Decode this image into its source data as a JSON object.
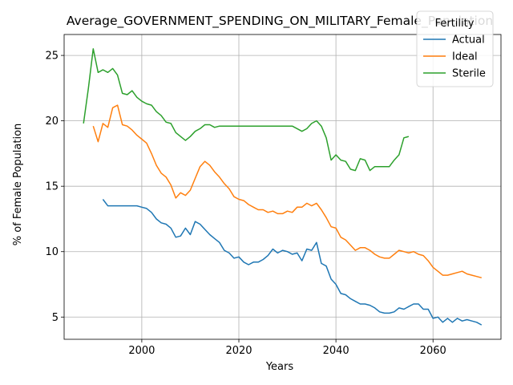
{
  "chart_data": {
    "type": "line",
    "title": "Average_GOVERNMENT_SPENDING_ON_MILITARY_Female_Population",
    "xlabel": "Years",
    "ylabel": "% of Female Population",
    "xlim": [
      2084,
      2074
    ],
    "ylim": [
      3.3,
      26.6
    ],
    "xticks": [
      2000,
      2020,
      2040,
      2060
    ],
    "yticks": [
      5,
      10,
      15,
      20,
      25
    ],
    "grid": true,
    "legend": {
      "title": "Fertility",
      "placement": "top-right"
    },
    "series": [
      {
        "name": "Actual",
        "color": "#1f77b4",
        "points": [
          [
            1992,
            14.0
          ],
          [
            1993,
            13.5
          ],
          [
            1995,
            13.5
          ],
          [
            1997,
            13.5
          ],
          [
            1999,
            13.5
          ],
          [
            2000,
            13.4
          ],
          [
            2001,
            13.3
          ],
          [
            2002,
            13.0
          ],
          [
            2003,
            12.5
          ],
          [
            2004,
            12.2
          ],
          [
            2005,
            12.1
          ],
          [
            2006,
            11.8
          ],
          [
            2007,
            11.1
          ],
          [
            2008,
            11.2
          ],
          [
            2009,
            11.8
          ],
          [
            2010,
            11.3
          ],
          [
            2011,
            12.3
          ],
          [
            2012,
            12.1
          ],
          [
            2013,
            11.7
          ],
          [
            2014,
            11.3
          ],
          [
            2015,
            11.0
          ],
          [
            2016,
            10.7
          ],
          [
            2017,
            10.1
          ],
          [
            2018,
            9.9
          ],
          [
            2019,
            9.5
          ],
          [
            2020,
            9.6
          ],
          [
            2021,
            9.2
          ],
          [
            2022,
            9.0
          ],
          [
            2023,
            9.2
          ],
          [
            2024,
            9.2
          ],
          [
            2025,
            9.4
          ],
          [
            2026,
            9.7
          ],
          [
            2027,
            10.2
          ],
          [
            2028,
            9.9
          ],
          [
            2029,
            10.1
          ],
          [
            2030,
            10.0
          ],
          [
            2031,
            9.8
          ],
          [
            2032,
            9.9
          ],
          [
            2033,
            9.3
          ],
          [
            2034,
            10.2
          ],
          [
            2035,
            10.1
          ],
          [
            2036,
            10.7
          ],
          [
            2037,
            9.1
          ],
          [
            2038,
            8.9
          ],
          [
            2039,
            7.9
          ],
          [
            2040,
            7.5
          ],
          [
            2041,
            6.8
          ],
          [
            2042,
            6.7
          ],
          [
            2043,
            6.4
          ],
          [
            2044,
            6.2
          ],
          [
            2045,
            6.0
          ],
          [
            2046,
            6.0
          ],
          [
            2047,
            5.9
          ],
          [
            2048,
            5.7
          ],
          [
            2049,
            5.4
          ],
          [
            2050,
            5.3
          ],
          [
            2051,
            5.3
          ],
          [
            2052,
            5.4
          ],
          [
            2053,
            5.7
          ],
          [
            2054,
            5.6
          ],
          [
            2055,
            5.8
          ],
          [
            2056,
            6.0
          ],
          [
            2057,
            6.0
          ],
          [
            2058,
            5.6
          ],
          [
            2059,
            5.6
          ],
          [
            2060,
            4.9
          ],
          [
            2061,
            5.0
          ],
          [
            2062,
            4.6
          ],
          [
            2063,
            4.9
          ],
          [
            2064,
            4.6
          ],
          [
            2065,
            4.9
          ],
          [
            2066,
            4.7
          ],
          [
            2067,
            4.8
          ],
          [
            2068,
            4.7
          ],
          [
            2069,
            4.6
          ],
          [
            2070,
            4.4
          ]
        ]
      },
      {
        "name": "Ideal",
        "color": "#ff7f0e",
        "points": [
          [
            1990,
            19.6
          ],
          [
            1991,
            18.4
          ],
          [
            1992,
            19.8
          ],
          [
            1993,
            19.5
          ],
          [
            1994,
            21.0
          ],
          [
            1995,
            21.2
          ],
          [
            1996,
            19.7
          ],
          [
            1997,
            19.6
          ],
          [
            1998,
            19.3
          ],
          [
            1999,
            18.9
          ],
          [
            2000,
            18.6
          ],
          [
            2001,
            18.3
          ],
          [
            2002,
            17.5
          ],
          [
            2003,
            16.6
          ],
          [
            2004,
            16.0
          ],
          [
            2005,
            15.7
          ],
          [
            2006,
            15.1
          ],
          [
            2007,
            14.1
          ],
          [
            2008,
            14.5
          ],
          [
            2009,
            14.3
          ],
          [
            2010,
            14.7
          ],
          [
            2011,
            15.6
          ],
          [
            2012,
            16.5
          ],
          [
            2013,
            16.9
          ],
          [
            2014,
            16.6
          ],
          [
            2015,
            16.1
          ],
          [
            2016,
            15.7
          ],
          [
            2017,
            15.2
          ],
          [
            2018,
            14.8
          ],
          [
            2019,
            14.2
          ],
          [
            2020,
            14.0
          ],
          [
            2021,
            13.9
          ],
          [
            2022,
            13.6
          ],
          [
            2023,
            13.4
          ],
          [
            2024,
            13.2
          ],
          [
            2025,
            13.2
          ],
          [
            2026,
            13.0
          ],
          [
            2027,
            13.1
          ],
          [
            2028,
            12.9
          ],
          [
            2029,
            12.9
          ],
          [
            2030,
            13.1
          ],
          [
            2031,
            13.0
          ],
          [
            2032,
            13.4
          ],
          [
            2033,
            13.4
          ],
          [
            2034,
            13.7
          ],
          [
            2035,
            13.5
          ],
          [
            2036,
            13.7
          ],
          [
            2037,
            13.2
          ],
          [
            2038,
            12.6
          ],
          [
            2039,
            11.9
          ],
          [
            2040,
            11.8
          ],
          [
            2041,
            11.1
          ],
          [
            2042,
            10.9
          ],
          [
            2043,
            10.5
          ],
          [
            2044,
            10.1
          ],
          [
            2045,
            10.3
          ],
          [
            2046,
            10.3
          ],
          [
            2047,
            10.1
          ],
          [
            2048,
            9.8
          ],
          [
            2049,
            9.6
          ],
          [
            2050,
            9.5
          ],
          [
            2051,
            9.5
          ],
          [
            2052,
            9.8
          ],
          [
            2053,
            10.1
          ],
          [
            2054,
            10.0
          ],
          [
            2055,
            9.9
          ],
          [
            2056,
            10.0
          ],
          [
            2057,
            9.8
          ],
          [
            2058,
            9.7
          ],
          [
            2059,
            9.3
          ],
          [
            2060,
            8.8
          ],
          [
            2061,
            8.5
          ],
          [
            2062,
            8.2
          ],
          [
            2063,
            8.2
          ],
          [
            2064,
            8.3
          ],
          [
            2065,
            8.4
          ],
          [
            2066,
            8.5
          ],
          [
            2067,
            8.3
          ],
          [
            2068,
            8.2
          ],
          [
            2069,
            8.1
          ],
          [
            2070,
            8.0
          ]
        ]
      },
      {
        "name": "Sterile",
        "color": "#2ca02c",
        "points": [
          [
            1988,
            19.8
          ],
          [
            1989,
            22.5
          ],
          [
            1990,
            25.5
          ],
          [
            1991,
            23.7
          ],
          [
            1992,
            23.9
          ],
          [
            1993,
            23.7
          ],
          [
            1994,
            24.0
          ],
          [
            1995,
            23.5
          ],
          [
            1996,
            22.1
          ],
          [
            1997,
            22.0
          ],
          [
            1998,
            22.3
          ],
          [
            1999,
            21.8
          ],
          [
            2000,
            21.5
          ],
          [
            2001,
            21.3
          ],
          [
            2002,
            21.2
          ],
          [
            2003,
            20.7
          ],
          [
            2004,
            20.4
          ],
          [
            2005,
            19.9
          ],
          [
            2006,
            19.8
          ],
          [
            2007,
            19.1
          ],
          [
            2008,
            18.8
          ],
          [
            2009,
            18.5
          ],
          [
            2010,
            18.8
          ],
          [
            2011,
            19.2
          ],
          [
            2012,
            19.4
          ],
          [
            2013,
            19.7
          ],
          [
            2014,
            19.7
          ],
          [
            2015,
            19.5
          ],
          [
            2016,
            19.6
          ],
          [
            2018,
            19.6
          ],
          [
            2020,
            19.6
          ],
          [
            2025,
            19.6
          ],
          [
            2031,
            19.6
          ],
          [
            2032,
            19.4
          ],
          [
            2033,
            19.2
          ],
          [
            2034,
            19.4
          ],
          [
            2035,
            19.8
          ],
          [
            2036,
            20.0
          ],
          [
            2037,
            19.6
          ],
          [
            2038,
            18.7
          ],
          [
            2039,
            17.0
          ],
          [
            2040,
            17.4
          ],
          [
            2041,
            17.0
          ],
          [
            2042,
            16.9
          ],
          [
            2043,
            16.3
          ],
          [
            2044,
            16.2
          ],
          [
            2045,
            17.1
          ],
          [
            2046,
            17.0
          ],
          [
            2047,
            16.2
          ],
          [
            2048,
            16.5
          ],
          [
            2049,
            16.5
          ],
          [
            2050,
            16.5
          ],
          [
            2051,
            16.5
          ],
          [
            2052,
            17.0
          ],
          [
            2053,
            17.4
          ],
          [
            2054,
            18.7
          ],
          [
            2055,
            18.8
          ]
        ]
      }
    ]
  }
}
